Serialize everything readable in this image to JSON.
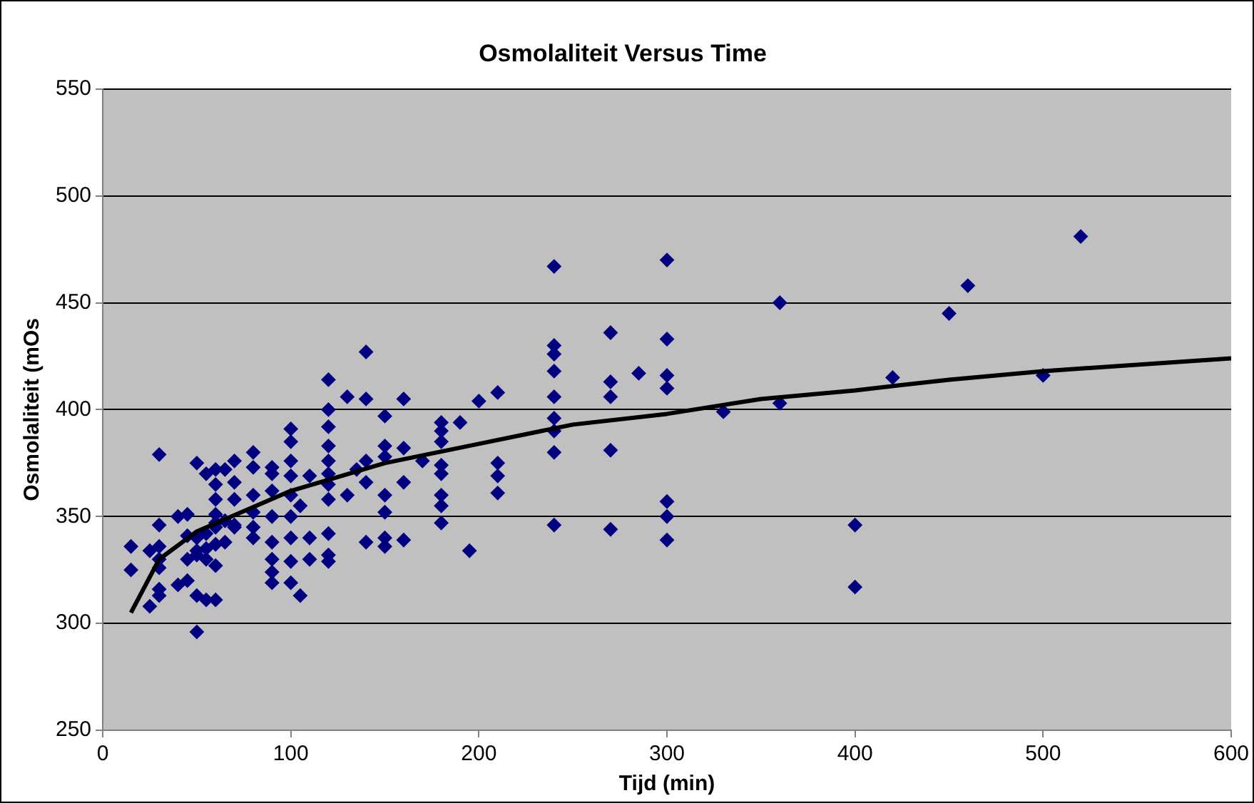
{
  "chart_data": {
    "type": "scatter",
    "title": "Osmolaliteit Versus Time",
    "xlabel": "Tijd (min)",
    "ylabel": "Osmolaliteit (mOs",
    "xlim": [
      0,
      600
    ],
    "xticks": [
      0,
      100,
      200,
      300,
      400,
      500,
      600
    ],
    "ylim": [
      250,
      550
    ],
    "yticks": [
      250,
      300,
      350,
      400,
      450,
      500,
      550
    ],
    "grid": "y",
    "legend": false,
    "marker": "diamond",
    "series": [
      {
        "color": "#000080",
        "x": [
          520,
          460,
          450,
          420,
          500,
          400,
          400,
          360,
          360,
          330,
          300,
          300,
          300,
          300,
          300,
          300,
          300,
          285,
          270,
          270,
          270,
          270,
          270,
          240,
          240,
          240,
          240,
          240,
          240,
          240,
          240,
          240,
          210,
          210,
          210,
          210,
          200,
          195,
          190,
          180,
          180,
          180,
          180,
          180,
          180,
          180,
          180,
          170,
          160,
          160,
          160,
          160,
          150,
          150,
          150,
          150,
          150,
          150,
          150,
          140,
          140,
          140,
          140,
          140,
          130,
          130,
          135,
          120,
          120,
          120,
          120,
          120,
          120,
          120,
          120,
          120,
          120,
          120,
          110,
          110,
          110,
          105,
          105,
          100,
          100,
          100,
          100,
          100,
          100,
          100,
          100,
          100,
          90,
          90,
          90,
          90,
          90,
          90,
          90,
          90,
          80,
          80,
          80,
          80,
          80,
          80,
          70,
          70,
          70,
          70,
          70,
          65,
          65,
          65,
          60,
          60,
          60,
          60,
          60,
          60,
          60,
          60,
          60,
          55,
          55,
          55,
          55,
          55,
          50,
          50,
          50,
          50,
          50,
          50,
          45,
          45,
          45,
          45,
          40,
          40,
          30,
          30,
          30,
          30,
          30,
          30,
          30,
          25,
          25,
          15,
          15
        ],
        "values": [
          481,
          458,
          445,
          415,
          416,
          346,
          317,
          450,
          403,
          399,
          470,
          433,
          416,
          410,
          357,
          350,
          339,
          417,
          436,
          413,
          406,
          381,
          344,
          467,
          430,
          426,
          418,
          406,
          396,
          390,
          380,
          346,
          408,
          375,
          369,
          361,
          404,
          334,
          394,
          394,
          390,
          385,
          374,
          370,
          360,
          355,
          347,
          376,
          405,
          382,
          366,
          339,
          397,
          383,
          378,
          360,
          352,
          340,
          336,
          427,
          405,
          376,
          366,
          338,
          406,
          360,
          372,
          414,
          400,
          392,
          383,
          376,
          370,
          365,
          358,
          342,
          329,
          332,
          369,
          340,
          330,
          355,
          313,
          391,
          385,
          376,
          369,
          360,
          350,
          340,
          329,
          319,
          373,
          370,
          362,
          350,
          338,
          330,
          324,
          319,
          380,
          373,
          360,
          352,
          345,
          340,
          376,
          366,
          358,
          346,
          345,
          372,
          348,
          338,
          372,
          365,
          358,
          351,
          345,
          337,
          327,
          311,
          347,
          370,
          342,
          335,
          330,
          311,
          375,
          340,
          334,
          332,
          313,
          296,
          351,
          341,
          330,
          320,
          350,
          318,
          379,
          346,
          336,
          330,
          326,
          316,
          313,
          334,
          308,
          336,
          325
        ]
      },
      {
        "type": "line",
        "color": "#000000",
        "marker": "none",
        "x": [
          15,
          30,
          50,
          100,
          150,
          200,
          250,
          300,
          350,
          400,
          450,
          500,
          600
        ],
        "values": [
          305,
          330,
          343,
          362,
          375,
          384,
          393,
          398,
          405,
          409,
          414,
          418,
          424
        ]
      }
    ]
  }
}
